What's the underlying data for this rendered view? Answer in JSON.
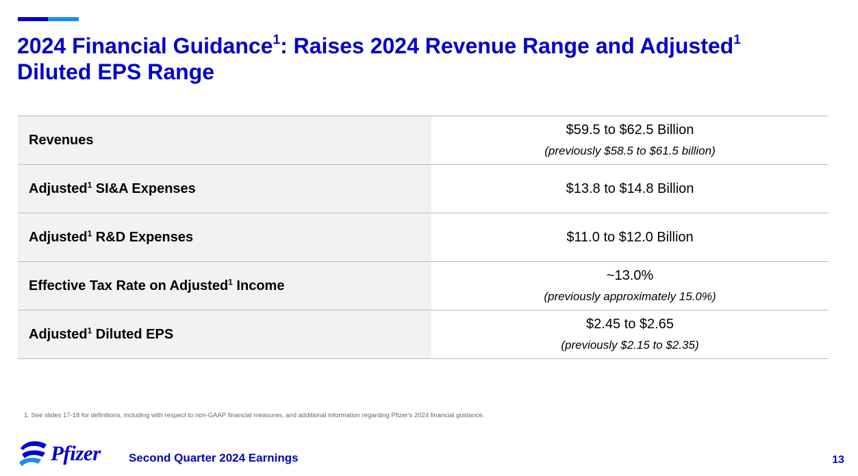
{
  "colors": {
    "brand_blue": "#0000c9",
    "accent_dark": "#0000c9",
    "accent_light": "#1a8fe6",
    "label_bg": "#f2f2f2",
    "rule": "#b8b8b8"
  },
  "slide": {
    "title": {
      "part1": "2024 Financial Guidance",
      "sup1": "1",
      "part2": ": Raises 2024 Revenue Range and Adjusted",
      "sup2": "1",
      "part3": "Diluted EPS Range"
    },
    "rows": [
      {
        "label_pre": "Revenues",
        "label_sup": "",
        "label_post": "",
        "value": "$59.5 to $62.5 Billion",
        "previous": "(previously $58.5 to $61.5 billion)"
      },
      {
        "label_pre": "Adjusted",
        "label_sup": "1",
        "label_post": " SI&A Expenses",
        "value": "$13.8 to $14.8 Billion",
        "previous": ""
      },
      {
        "label_pre": "Adjusted",
        "label_sup": "1",
        "label_post": " R&D Expenses",
        "value": "$11.0 to $12.0 Billion",
        "previous": ""
      },
      {
        "label_pre": "Effective Tax Rate on Adjusted",
        "label_sup": "1",
        "label_post": " Income",
        "value": "~13.0%",
        "previous": "(previously approximately 15.0%)"
      },
      {
        "label_pre": "Adjusted",
        "label_sup": "1",
        "label_post": " Diluted EPS",
        "value": "$2.45 to $2.65",
        "previous": "(previously $2.15 to $2.35)"
      }
    ],
    "footnote": "1. See slides 17-18 for definitions, including with respect to non-GAAP financial measures, and additional information regarding Pfizer's 2024 financial guidance.",
    "footer": {
      "logo_text": "Pfizer",
      "logo_icon": "pfizer-logo-icon",
      "label": "Second Quarter 2024 Earnings",
      "page_number": "13"
    }
  }
}
